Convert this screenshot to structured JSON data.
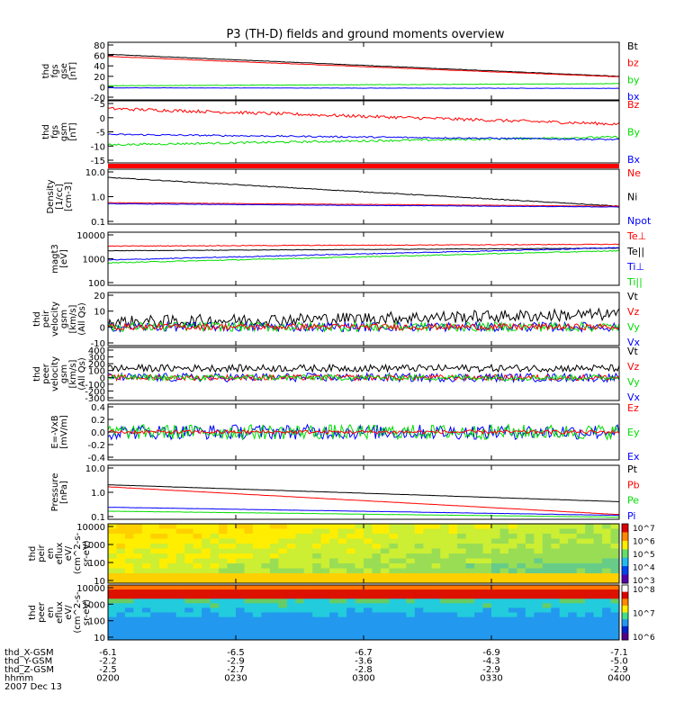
{
  "title": "P3 (TH-D) fields and ground moments overview",
  "colors": {
    "black": "#000000",
    "red": "#ff0000",
    "green": "#00dd00",
    "blue": "#0000ff"
  },
  "chart_data": [
    {
      "type": "line",
      "ylabel": [
        "thd",
        "fgs",
        "gse",
        "[nT]"
      ],
      "yticks": [
        "80",
        "60",
        "40",
        "20",
        "0",
        "-20"
      ],
      "ylim": [
        -25,
        85
      ],
      "legend": [
        {
          "name": "Bt",
          "color": "black"
        },
        {
          "name": "bz",
          "color": "red"
        },
        {
          "name": "by",
          "color": "green"
        },
        {
          "name": "bx",
          "color": "blue"
        }
      ],
      "series": [
        {
          "name": "Bt",
          "color": "black",
          "start": 62,
          "end": 20,
          "noise": 0.4
        },
        {
          "name": "bz",
          "color": "red",
          "start": 58,
          "end": 19,
          "noise": 0.4
        },
        {
          "name": "by",
          "color": "green",
          "start": 2,
          "end": 6,
          "noise": 0.4
        },
        {
          "name": "bx",
          "color": "blue",
          "start": -2,
          "end": -3,
          "noise": 0.3
        }
      ]
    },
    {
      "type": "line",
      "ylabel": [
        "thd",
        "fgs",
        "gsm",
        "[nT]"
      ],
      "yticks": [
        "5",
        "0",
        "-5",
        "-10",
        "-15"
      ],
      "ylim": [
        -17,
        7
      ],
      "legend": [
        {
          "name": "Bz",
          "color": "red"
        },
        {
          "name": "By",
          "color": "green"
        },
        {
          "name": "Bx",
          "color": "blue"
        }
      ],
      "series": [
        {
          "name": "Bz",
          "color": "red",
          "start": 4,
          "end": -2,
          "noise": 0.6
        },
        {
          "name": "By",
          "color": "green",
          "start": -10,
          "end": -7,
          "noise": 0.4
        },
        {
          "name": "Bx",
          "color": "blue",
          "start": -6,
          "end": -8,
          "noise": 0.3
        }
      ]
    },
    {
      "type": "line",
      "scale": "log",
      "ylabel": [
        "Density",
        "[1/cc]",
        "[cm-3]"
      ],
      "yticks": [
        "10.0",
        "1.0",
        "0.1"
      ],
      "ylim": [
        0.1,
        10
      ],
      "legend": [
        {
          "name": "Ne",
          "color": "red"
        },
        {
          "name": "Ni",
          "color": "black"
        },
        {
          "name": "Npot",
          "color": "blue"
        }
      ],
      "series": [
        {
          "name": "Ni",
          "color": "black",
          "start": 5,
          "end": 0.45,
          "noise": 0.03
        },
        {
          "name": "Ne",
          "color": "red",
          "start": 0.6,
          "end": 0.45,
          "noise": 0.02
        },
        {
          "name": "Npot",
          "color": "blue",
          "start": 0.55,
          "end": 0.42,
          "noise": 0.02
        }
      ]
    },
    {
      "type": "line",
      "scale": "log",
      "ylabel": [
        "magt3",
        "[eV]"
      ],
      "yticks": [
        "10000",
        "1000",
        "100"
      ],
      "ylim": [
        100,
        10000
      ],
      "legend": [
        {
          "name": "Te⊥",
          "color": "red"
        },
        {
          "name": "Te||",
          "color": "black"
        },
        {
          "name": "Ti⊥",
          "color": "blue"
        },
        {
          "name": "Ti||",
          "color": "green"
        }
      ],
      "series": [
        {
          "name": "Te⊥",
          "color": "red",
          "start": 3000,
          "end": 3500,
          "noise": 0.03
        },
        {
          "name": "Te||",
          "color": "black",
          "start": 2000,
          "end": 2500,
          "noise": 0.02
        },
        {
          "name": "Ti⊥",
          "color": "blue",
          "start": 900,
          "end": 2600,
          "noise": 0.04
        },
        {
          "name": "Ti||",
          "color": "green",
          "start": 700,
          "end": 2000,
          "noise": 0.04
        }
      ]
    },
    {
      "type": "line",
      "ylabel": [
        "thd",
        "peir",
        "velocity",
        "gsm",
        "[km/s]",
        "(All Qs)"
      ],
      "yticks": [
        "20",
        "10",
        "0",
        "-10"
      ],
      "ylim": [
        -12,
        22
      ],
      "legend": [
        {
          "name": "Vt",
          "color": "black"
        },
        {
          "name": "Vz",
          "color": "red"
        },
        {
          "name": "Vy",
          "color": "green"
        },
        {
          "name": "Vx",
          "color": "blue"
        }
      ],
      "series": [
        {
          "name": "Vt",
          "color": "black",
          "start": 3,
          "end": 8,
          "noise": 4
        },
        {
          "name": "Vx",
          "color": "blue",
          "start": 0,
          "end": 0,
          "noise": 3
        },
        {
          "name": "Vy",
          "color": "green",
          "start": 0,
          "end": 0,
          "noise": 3
        },
        {
          "name": "Vz",
          "color": "red",
          "start": 0,
          "end": 0,
          "noise": 2
        }
      ]
    },
    {
      "type": "line",
      "ylabel": [
        "thd",
        "peer",
        "velocity",
        "gsm",
        "[km/s]",
        "(All Qs)"
      ],
      "yticks": [
        "400",
        "300",
        "200",
        "100",
        "0",
        "-100",
        "-200",
        "-300"
      ],
      "ylim": [
        -320,
        420
      ],
      "legend": [
        {
          "name": "Vt",
          "color": "black"
        },
        {
          "name": "Vz",
          "color": "red"
        },
        {
          "name": "Vy",
          "color": "green"
        },
        {
          "name": "Vx",
          "color": "blue"
        }
      ],
      "series": [
        {
          "name": "Vt",
          "color": "black",
          "start": 130,
          "end": 130,
          "noise": 50
        },
        {
          "name": "Vx",
          "color": "blue",
          "start": 0,
          "end": 0,
          "noise": 60
        },
        {
          "name": "Vz",
          "color": "red",
          "start": 0,
          "end": 0,
          "noise": 40
        },
        {
          "name": "Vy",
          "color": "green",
          "start": 0,
          "end": 0,
          "noise": 40
        }
      ]
    },
    {
      "type": "line",
      "ylabel": [
        "E=-VxB",
        "[mV/m]"
      ],
      "yticks": [
        "0.4",
        "0.2",
        "0.0",
        "-0.2",
        "-0.4"
      ],
      "ylim": [
        -0.45,
        0.45
      ],
      "legend": [
        {
          "name": "Ez",
          "color": "red"
        },
        {
          "name": "Ey",
          "color": "green"
        },
        {
          "name": "Ex",
          "color": "blue"
        }
      ],
      "series": [
        {
          "name": "Ex",
          "color": "blue",
          "start": 0,
          "end": 0,
          "noise": 0.12
        },
        {
          "name": "Ey",
          "color": "green",
          "start": 0,
          "end": 0,
          "noise": 0.12
        },
        {
          "name": "Ez",
          "color": "red",
          "start": 0,
          "end": 0,
          "noise": 0.03
        }
      ]
    },
    {
      "type": "line",
      "scale": "log",
      "ylabel": [
        "Pressure",
        "[nPa]"
      ],
      "yticks": [
        "10.0",
        "1.0",
        "0.1"
      ],
      "ylim": [
        0.1,
        10
      ],
      "legend": [
        {
          "name": "Pt",
          "color": "black"
        },
        {
          "name": "Pb",
          "color": "red"
        },
        {
          "name": "Pe",
          "color": "green"
        },
        {
          "name": "Pi",
          "color": "blue"
        }
      ],
      "series": [
        {
          "name": "Pt",
          "color": "black",
          "start": 1.9,
          "end": 0.45,
          "noise": 0.01
        },
        {
          "name": "Pb",
          "color": "red",
          "start": 1.6,
          "end": 0.15,
          "noise": 0.01
        },
        {
          "name": "Pe",
          "color": "green",
          "start": 0.2,
          "end": 0.12,
          "noise": 0.01
        },
        {
          "name": "Pi",
          "color": "blue",
          "start": 0.28,
          "end": 0.14,
          "noise": 0.01
        }
      ]
    },
    {
      "type": "heatmap",
      "ylabel": [
        "thd",
        "peir",
        "en",
        "eflux",
        "eV/",
        "(cm^2-s-",
        "sr-eV)"
      ],
      "yticks": [
        "10000",
        "1000",
        "100",
        "10"
      ],
      "colorbar": [
        "10^7",
        "10^6",
        "10^5",
        "10^4",
        "10^3"
      ]
    },
    {
      "type": "heatmap",
      "ylabel": [
        "thd",
        "peer",
        "en",
        "eflux",
        "eV/",
        "(cm^2-s-",
        "sr-eV)"
      ],
      "yticks": [
        "10000",
        "1000",
        "100",
        "10"
      ],
      "colorbar": [
        "10^8",
        "10^7",
        "10^6"
      ]
    }
  ],
  "xaxis": {
    "labels": [
      "thd_X-GSM",
      "thd_Y-GSM",
      "thd_Z-GSM",
      "hhmm",
      "2007 Dec 13"
    ],
    "ticks": [
      {
        "x": "-6.1",
        "y": "-2.2",
        "z": "-2.5",
        "t": "0200"
      },
      {
        "x": "-6.5",
        "y": "-2.9",
        "z": "-2.7",
        "t": "0230"
      },
      {
        "x": "-6.7",
        "y": "-3.6",
        "z": "-2.8",
        "t": "0300"
      },
      {
        "x": "-6.9",
        "y": "-4.3",
        "z": "-2.9",
        "t": "0330"
      },
      {
        "x": "-7.1",
        "y": "-5.0",
        "z": "-2.9",
        "t": "0400"
      }
    ]
  }
}
